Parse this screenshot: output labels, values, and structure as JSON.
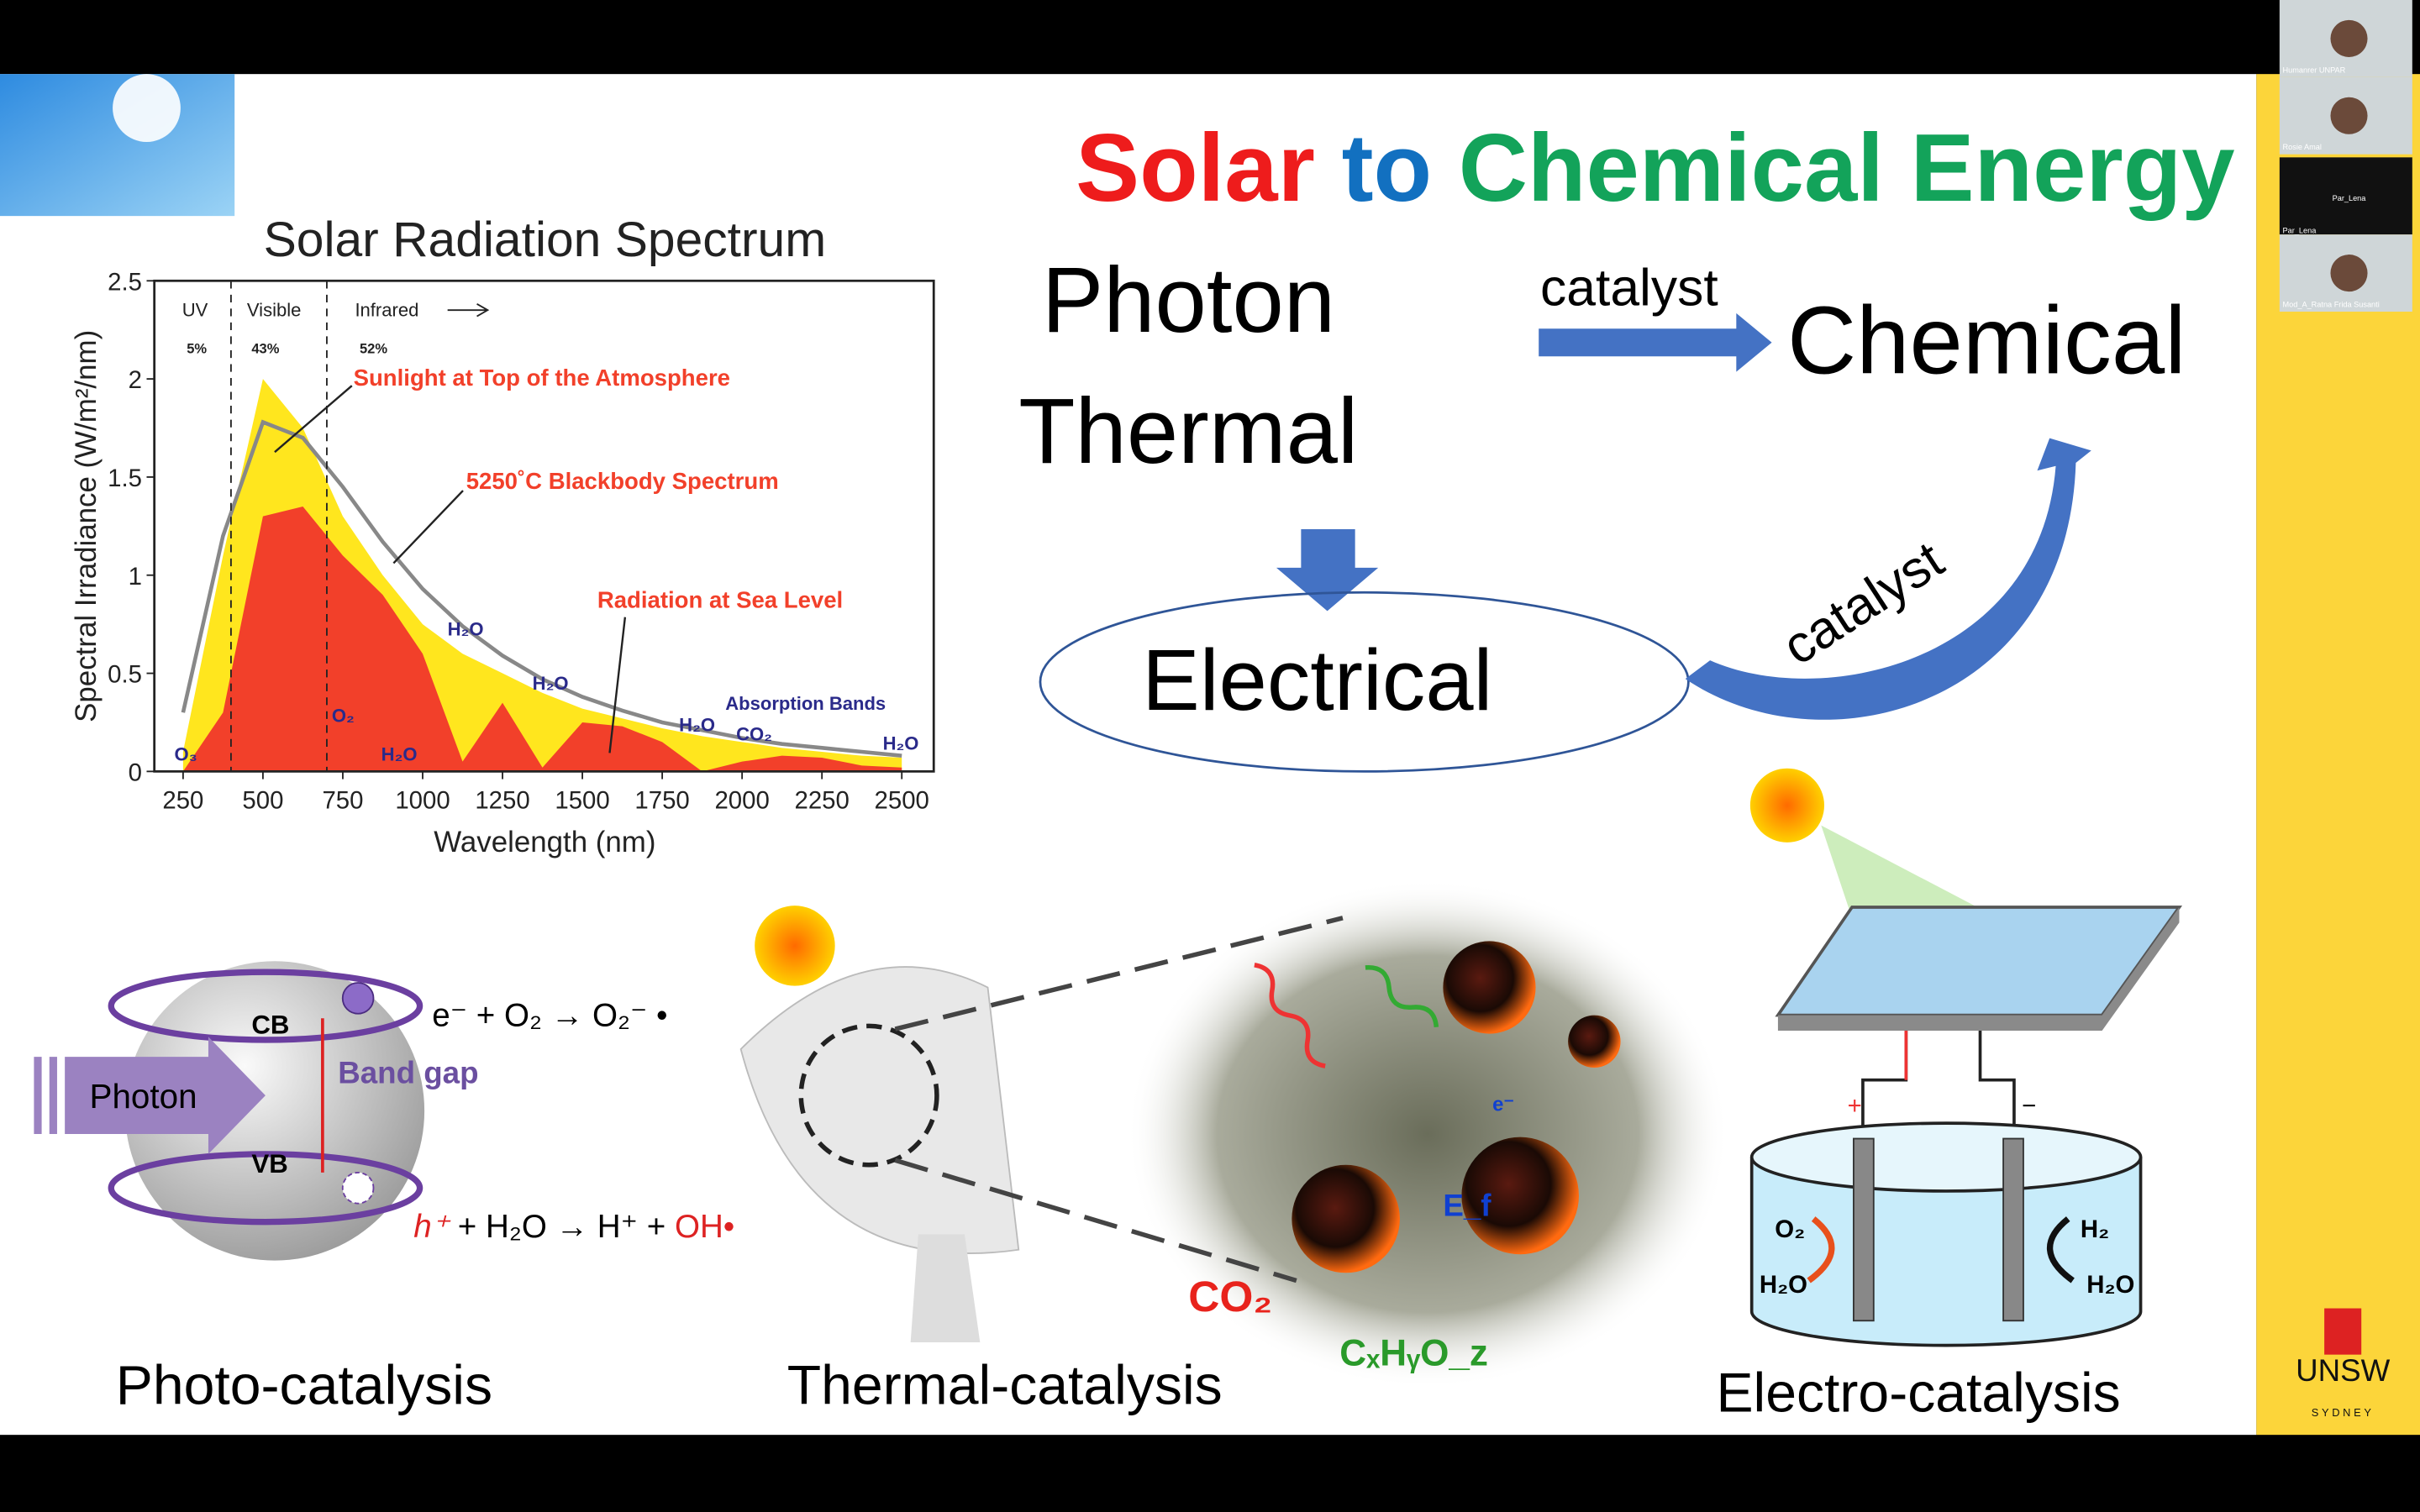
{
  "call": {
    "participants": [
      "Humanrer UNPAR",
      "Rosie Amal",
      "Par_Lena",
      "Par_Lena",
      "Mod_A_Ratna Frida Susanti"
    ],
    "logo": {
      "name": "UNSW",
      "sub": "SYDNEY"
    }
  },
  "slide": {
    "title": {
      "part1": "Solar",
      "part2": "to",
      "part3": "Chemical Energy"
    },
    "flow": {
      "photon": "Photon",
      "thermal": "Thermal",
      "catalyst_top": "catalyst",
      "chemical": "Chemical",
      "electrical": "Electrical",
      "catalyst_curve": "catalyst"
    },
    "photo": {
      "caption": "Photo-catalysis",
      "cb": "CB",
      "vb": "VB",
      "band_gap": "Band gap",
      "photon": "Photon",
      "eq1": "e⁻ + O₂ → O₂⁻ •",
      "eq2_h": "h⁺",
      "eq2": " + H₂O → H⁺ + ",
      "eq2_oh": "OH•"
    },
    "thermal": {
      "caption": "Thermal-catalysis",
      "co2": "CO₂",
      "product": "CₓHᵧO_z",
      "ef": "E_f",
      "e": "e⁻"
    },
    "electro": {
      "caption": "Electro-catalysis",
      "plus": "+",
      "minus": "−",
      "o2": "O₂",
      "h2o_left": "H₂O",
      "h2": "H₂",
      "h2o_right": "H₂O"
    }
  },
  "chart_data": {
    "type": "area",
    "title": "Solar Radiation Spectrum",
    "x_label": "Wavelength (nm)",
    "y_label": "Spectral Irradiance (W/m²/nm)",
    "x": [
      250,
      375,
      500,
      625,
      750,
      875,
      1000,
      1125,
      1250,
      1375,
      1500,
      1625,
      1750,
      1875,
      2000,
      2125,
      2250,
      2375,
      2500
    ],
    "series": [
      {
        "name": "Sunlight at Top of the Atmosphere",
        "color": "#ffe61e",
        "values": [
          0.1,
          1.1,
          2.0,
          1.75,
          1.3,
          1.0,
          0.75,
          0.6,
          0.5,
          0.4,
          0.32,
          0.27,
          0.22,
          0.18,
          0.15,
          0.12,
          0.1,
          0.08,
          0.07
        ]
      },
      {
        "name": "Radiation at Sea Level",
        "color": "#f2402a",
        "values": [
          0,
          0.3,
          1.3,
          1.35,
          1.1,
          0.9,
          0.6,
          0.05,
          0.35,
          0.02,
          0.25,
          0.23,
          0.15,
          0,
          0.05,
          0.08,
          0.07,
          0.03,
          0.02
        ]
      },
      {
        "name": "5250˚C Blackbody Spectrum",
        "color": "#888888",
        "values": [
          0.3,
          1.2,
          1.78,
          1.7,
          1.45,
          1.17,
          0.93,
          0.74,
          0.59,
          0.47,
          0.38,
          0.31,
          0.25,
          0.21,
          0.17,
          0.14,
          0.12,
          0.1,
          0.08
        ]
      }
    ],
    "xlim": [
      160,
      2600
    ],
    "ylim": [
      0,
      2.5
    ],
    "xticks": [
      250,
      500,
      750,
      1000,
      1250,
      1500,
      1750,
      2000,
      2250,
      2500
    ],
    "yticks": [
      0,
      0.5,
      1,
      1.5,
      2,
      2.5
    ],
    "region_bounds": [
      400,
      700
    ],
    "regions": [
      {
        "name": "UV",
        "share": "5%"
      },
      {
        "name": "Visible",
        "share": "43%"
      },
      {
        "name": "Infrared",
        "share": "52%"
      }
    ],
    "annotations": [
      "O₃",
      "O₂",
      "H₂O",
      "H₂O",
      "H₂O",
      "H₂O",
      "CO₂",
      "H₂O",
      "Absorption Bands"
    ]
  }
}
